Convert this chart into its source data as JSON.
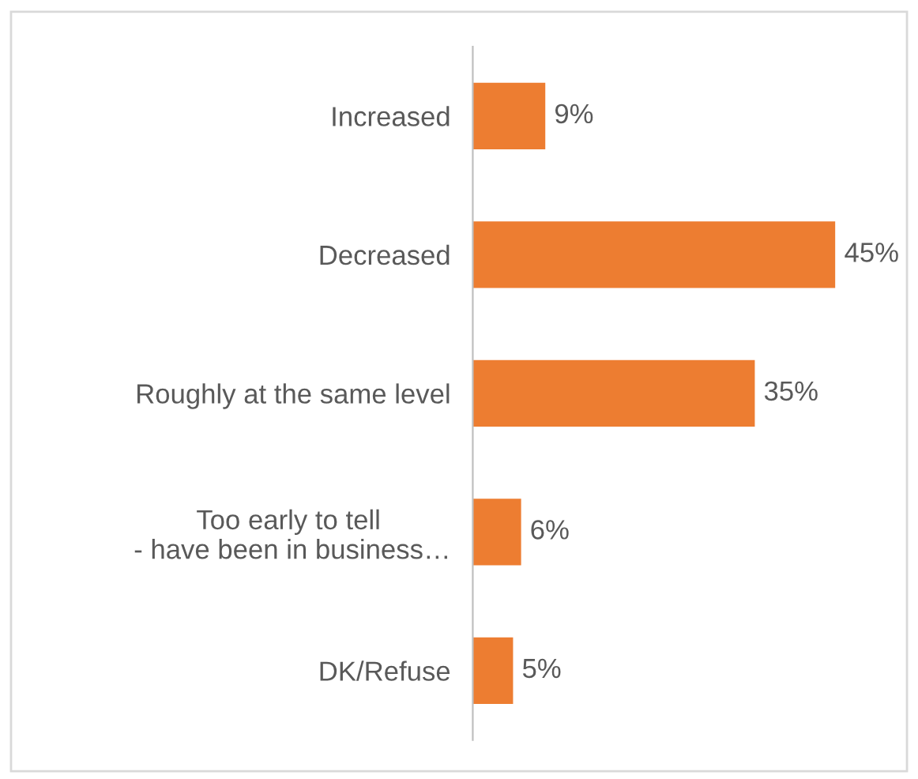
{
  "chart_data": {
    "type": "bar",
    "orientation": "horizontal",
    "categories": [
      "Increased",
      "Decreased",
      "Roughly at the same level",
      "Too early to tell\n - have been in business…",
      "DK/Refuse"
    ],
    "values": [
      9,
      45,
      35,
      6,
      5
    ],
    "value_labels": [
      "9%",
      "45%",
      "35%",
      "6%",
      "5%"
    ],
    "color": "#ed7d31",
    "grid": false,
    "legend": false
  }
}
